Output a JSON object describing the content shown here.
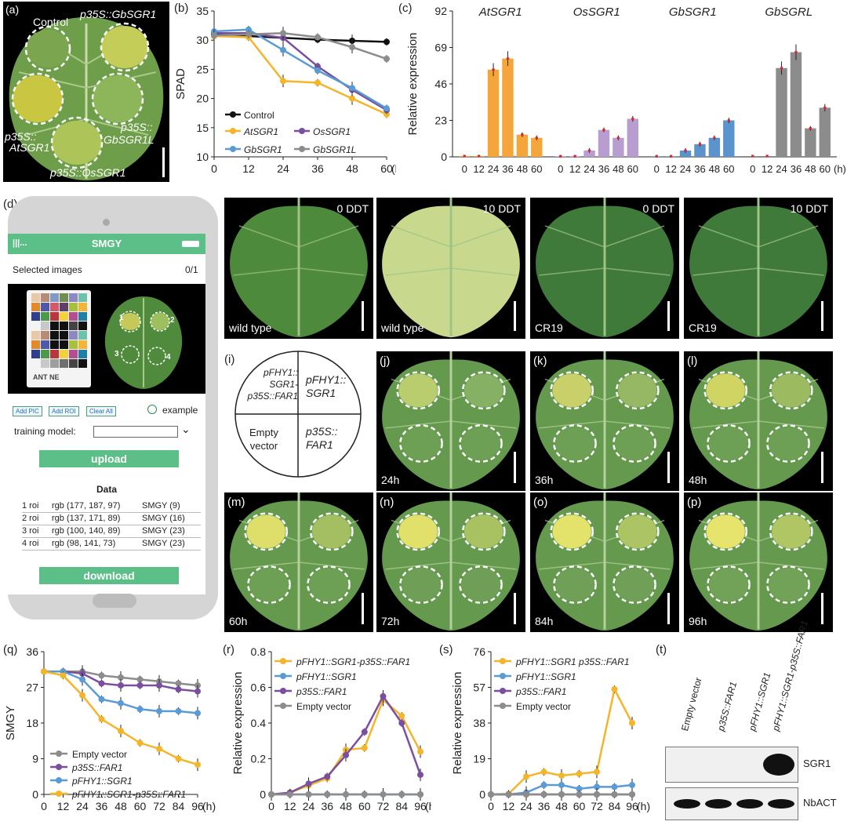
{
  "panels": {
    "a": {
      "label": "(a)",
      "texts": [
        "Control",
        "p35S::GbSGR1",
        "p35S::",
        "AtSGR1",
        "p35S::",
        "GbSGR1L",
        "p35S::OsSGR1"
      ]
    },
    "b": {
      "label": "(b)",
      "ylabel": "SPAD",
      "xunit": "(h)",
      "legend": [
        "Control",
        "AtSGR1",
        "OsSGR1",
        "GbSGR1",
        "GbSGR1L"
      ]
    },
    "c": {
      "label": "(c)",
      "ylabel": "Relative expression",
      "xunit": "(h)",
      "groups": [
        "AtSGR1",
        "OsSGR1",
        "GbSGR1",
        "GbSGRL"
      ]
    },
    "d": {
      "label": "(d)"
    },
    "e": {
      "label": "(e)",
      "ddt": "0 DDT",
      "name": "wild type"
    },
    "f": {
      "label": "(f)",
      "ddt": "10 DDT",
      "name": "wild type"
    },
    "g": {
      "label": "(g)",
      "ddt": "0 DDT",
      "name": "CR19"
    },
    "h": {
      "label": "(h)",
      "ddt": "10 DDT",
      "name": "CR19"
    },
    "i": {
      "label": "(i)",
      "q1": [
        "pFHY1::",
        "SGR1-",
        "p35S::FAR1"
      ],
      "q2": [
        "pFHY1::",
        "SGR1"
      ],
      "q3": [
        "Empty",
        "vector"
      ],
      "q4": [
        "p35S::",
        "FAR1"
      ]
    },
    "j": {
      "label": "(j)",
      "time": "24h"
    },
    "k": {
      "label": "(k)",
      "time": "36h"
    },
    "l": {
      "label": "(l)",
      "time": "48h"
    },
    "m": {
      "label": "(m)",
      "time": "60h"
    },
    "n": {
      "label": "(n)",
      "time": "72h"
    },
    "o": {
      "label": "(o)",
      "time": "84h"
    },
    "p": {
      "label": "(p)",
      "time": "96h"
    },
    "q": {
      "label": "(q)",
      "ylabel": "SMGY",
      "xunit": "(h)",
      "legend": [
        "Empty vector",
        "p35S::FAR1",
        "pFHY1::SGR1",
        "pFHY1::SGR1-p35S::FAR1"
      ]
    },
    "r": {
      "label": "(r)",
      "ylabel": "Relative expression",
      "xunit": "(h)",
      "legend": [
        "pFHY1::SGR1-p35S::FAR1",
        "pFHY1::SGR1",
        "p35S::FAR1",
        "Empty vector"
      ]
    },
    "s": {
      "label": "(s)",
      "ylabel": "Relative expression",
      "xunit": "(h)",
      "legend": [
        "pFHY1::SGR1 p35S::FAR1",
        "pFHY1::SGR1",
        "p35S::FAR1",
        "Empty vector"
      ]
    },
    "t": {
      "label": "(t)",
      "lanes": [
        "Empty vector",
        "p35S::FAR1",
        "pFHY1::SGR1",
        "pFHY1::SGR1-p35S::FAR1"
      ],
      "bands": [
        "SGR1",
        "NbACT"
      ]
    }
  },
  "app": {
    "title": "SMGY",
    "selected_label": "Selected images",
    "selected_count": "0/1",
    "card_text": "ANT NE",
    "spots": [
      "1",
      "2",
      "3",
      "4"
    ],
    "btn_add_pic": "Add PIC",
    "btn_add_roi": "Add ROI",
    "btn_clear": "Clear All",
    "example": "example",
    "training_label": "training model:",
    "upload": "upload",
    "data_title": "Data",
    "rows": [
      {
        "roi": "1 roi",
        "rgb": "rgb (177, 187, 97)",
        "smgy": "SMGY (9)"
      },
      {
        "roi": "2 roi",
        "rgb": "rgb (137, 171, 89)",
        "smgy": "SMGY (16)"
      },
      {
        "roi": "3 roi",
        "rgb": "rgb (100, 140, 89)",
        "smgy": "SMGY (23)"
      },
      {
        "roi": "4 roi",
        "rgb": "rgb (98, 141, 73)",
        "smgy": "SMGY (23)"
      }
    ],
    "download": "download"
  },
  "chart_data": [
    {
      "id": "b",
      "type": "line",
      "ylabel": "SPAD",
      "ylim": [
        10,
        35
      ],
      "yticks": [
        10,
        15,
        20,
        25,
        30,
        35
      ],
      "x": [
        0,
        12,
        24,
        36,
        48,
        60
      ],
      "series": [
        {
          "name": "Control",
          "color": "#111111",
          "values": [
            31,
            30.7,
            30.4,
            30.1,
            29.9,
            29.7
          ]
        },
        {
          "name": "AtSGR1",
          "color": "#f5b52a",
          "values": [
            30.7,
            30.5,
            23,
            22.7,
            20,
            17.3
          ]
        },
        {
          "name": "OsSGR1",
          "color": "#7a4fa0",
          "values": [
            31.2,
            31.2,
            30.4,
            25.5,
            21.5,
            18
          ]
        },
        {
          "name": "GbSGR1",
          "color": "#5b9bd5",
          "values": [
            31.5,
            31.8,
            28.3,
            24.8,
            21.8,
            18.3
          ]
        },
        {
          "name": "GbSGR1L",
          "color": "#8c8c8c",
          "values": [
            30.8,
            31,
            31.2,
            30.5,
            28.8,
            26.8
          ]
        }
      ]
    },
    {
      "id": "c",
      "type": "bar",
      "ylabel": "Relative expression",
      "ylim": [
        0,
        92
      ],
      "yticks": [
        0,
        23,
        46,
        69,
        92
      ],
      "categories": [
        "0",
        "12",
        "24",
        "36",
        "48",
        "60"
      ],
      "series": [
        {
          "name": "AtSGR1",
          "color": "#f4a63a",
          "values": [
            0.5,
            0.5,
            55,
            62,
            14,
            12
          ]
        },
        {
          "name": "OsSGR1",
          "color": "#b89ed0",
          "values": [
            0.4,
            0.4,
            4,
            17,
            12,
            24
          ]
        },
        {
          "name": "GbSGR1",
          "color": "#5b93cd",
          "values": [
            0.4,
            0.4,
            4,
            8,
            12,
            23
          ]
        },
        {
          "name": "GbSGRL",
          "color": "#8c8c8c",
          "values": [
            0.5,
            0.5,
            56,
            66,
            18,
            31
          ]
        }
      ]
    },
    {
      "id": "q",
      "type": "line",
      "ylabel": "SMGY",
      "ylim": [
        0,
        36
      ],
      "yticks": [
        0,
        9,
        18,
        27,
        36
      ],
      "x": [
        0,
        12,
        24,
        36,
        48,
        60,
        72,
        84,
        96
      ],
      "series": [
        {
          "name": "Empty vector",
          "color": "#8c8c8c",
          "values": [
            31,
            31,
            31,
            30,
            29.5,
            29,
            28.5,
            28,
            27.5
          ]
        },
        {
          "name": "p35S::FAR1",
          "color": "#7a4fa0",
          "values": [
            31,
            31,
            30.5,
            28,
            27.5,
            27.5,
            27.5,
            26.5,
            26
          ]
        },
        {
          "name": "pFHY1::SGR1",
          "color": "#5b9bd5",
          "values": [
            31,
            31,
            29,
            24,
            23,
            21.5,
            21,
            21,
            20.5
          ]
        },
        {
          "name": "pFHY1::SGR1-p35S::FAR1",
          "color": "#f5b52a",
          "values": [
            31,
            30,
            25,
            19,
            16,
            13,
            11.5,
            9,
            7.5
          ]
        }
      ]
    },
    {
      "id": "r",
      "type": "line",
      "ylabel": "Relative expression",
      "ylim": [
        0,
        0.8
      ],
      "yticks": [
        0,
        0.2,
        0.4,
        0.6,
        0.8
      ],
      "x": [
        0,
        12,
        24,
        36,
        48,
        60,
        72,
        84,
        96
      ],
      "series": [
        {
          "name": "pFHY1::SGR1-p35S::FAR1",
          "color": "#f5b52a",
          "values": [
            0,
            0.01,
            0.05,
            0.09,
            0.25,
            0.26,
            0.53,
            0.44,
            0.24
          ]
        },
        {
          "name": "pFHY1::SGR1",
          "color": "#5b9bd5",
          "values": [
            0,
            0,
            0,
            0,
            0,
            0,
            0,
            0,
            0
          ]
        },
        {
          "name": "p35S::FAR1",
          "color": "#7a4fa0",
          "values": [
            0,
            0.01,
            0.06,
            0.1,
            0.22,
            0.35,
            0.55,
            0.4,
            0.11
          ]
        },
        {
          "name": "Empty vector",
          "color": "#8c8c8c",
          "values": [
            0,
            0,
            0,
            0,
            0,
            0,
            0,
            0,
            0
          ]
        }
      ]
    },
    {
      "id": "s",
      "type": "line",
      "ylabel": "Relative expression",
      "ylim": [
        0,
        76
      ],
      "yticks": [
        0,
        19,
        38,
        57,
        76
      ],
      "x": [
        0,
        12,
        24,
        36,
        48,
        60,
        72,
        84,
        96
      ],
      "series": [
        {
          "name": "pFHY1::SGR1 p35S::FAR1",
          "color": "#f5b52a",
          "values": [
            0,
            0.3,
            9.5,
            12,
            10,
            11,
            12,
            56,
            38
          ]
        },
        {
          "name": "pFHY1::SGR1",
          "color": "#5b9bd5",
          "values": [
            0,
            0,
            1,
            5,
            5,
            3,
            4,
            4,
            5
          ]
        },
        {
          "name": "p35S::FAR1",
          "color": "#7a4fa0",
          "values": [
            0,
            0,
            0,
            0,
            0,
            0,
            0,
            0,
            0
          ]
        },
        {
          "name": "Empty vector",
          "color": "#8c8c8c",
          "values": [
            0,
            0,
            0,
            0,
            0,
            0,
            0,
            0,
            0
          ]
        }
      ]
    }
  ]
}
